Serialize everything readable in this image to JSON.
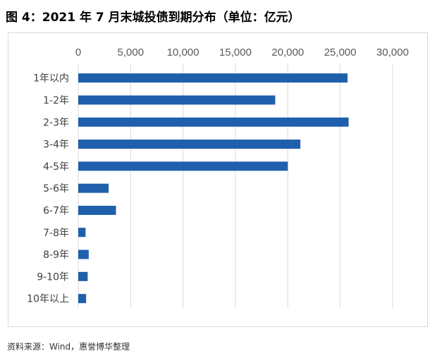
{
  "title": "图 4：2021 年 7 月末城投债到期分布（单位：亿元）",
  "source": "资料来源：Wind，惠誉博华整理",
  "chart_data": {
    "type": "bar",
    "orientation": "horizontal",
    "xaxis_position": "top",
    "grid": true,
    "xlim": [
      0,
      30000
    ],
    "ticks": [
      0,
      5000,
      10000,
      15000,
      20000,
      25000,
      30000
    ],
    "tick_labels": [
      "0",
      "5,000",
      "10,000",
      "15,000",
      "20,000",
      "25,000",
      "30,000"
    ],
    "categories": [
      "1年以内",
      "1-2年",
      "2-3年",
      "3-4年",
      "4-5年",
      "5-6年",
      "6-7年",
      "7-8年",
      "8-9年",
      "9-10年",
      "10年以上"
    ],
    "values": [
      25700,
      18800,
      25800,
      21200,
      20000,
      2900,
      3600,
      700,
      1000,
      900,
      750
    ],
    "bar_color": "#1f5fac",
    "grid_color": "#d9d9d9"
  }
}
